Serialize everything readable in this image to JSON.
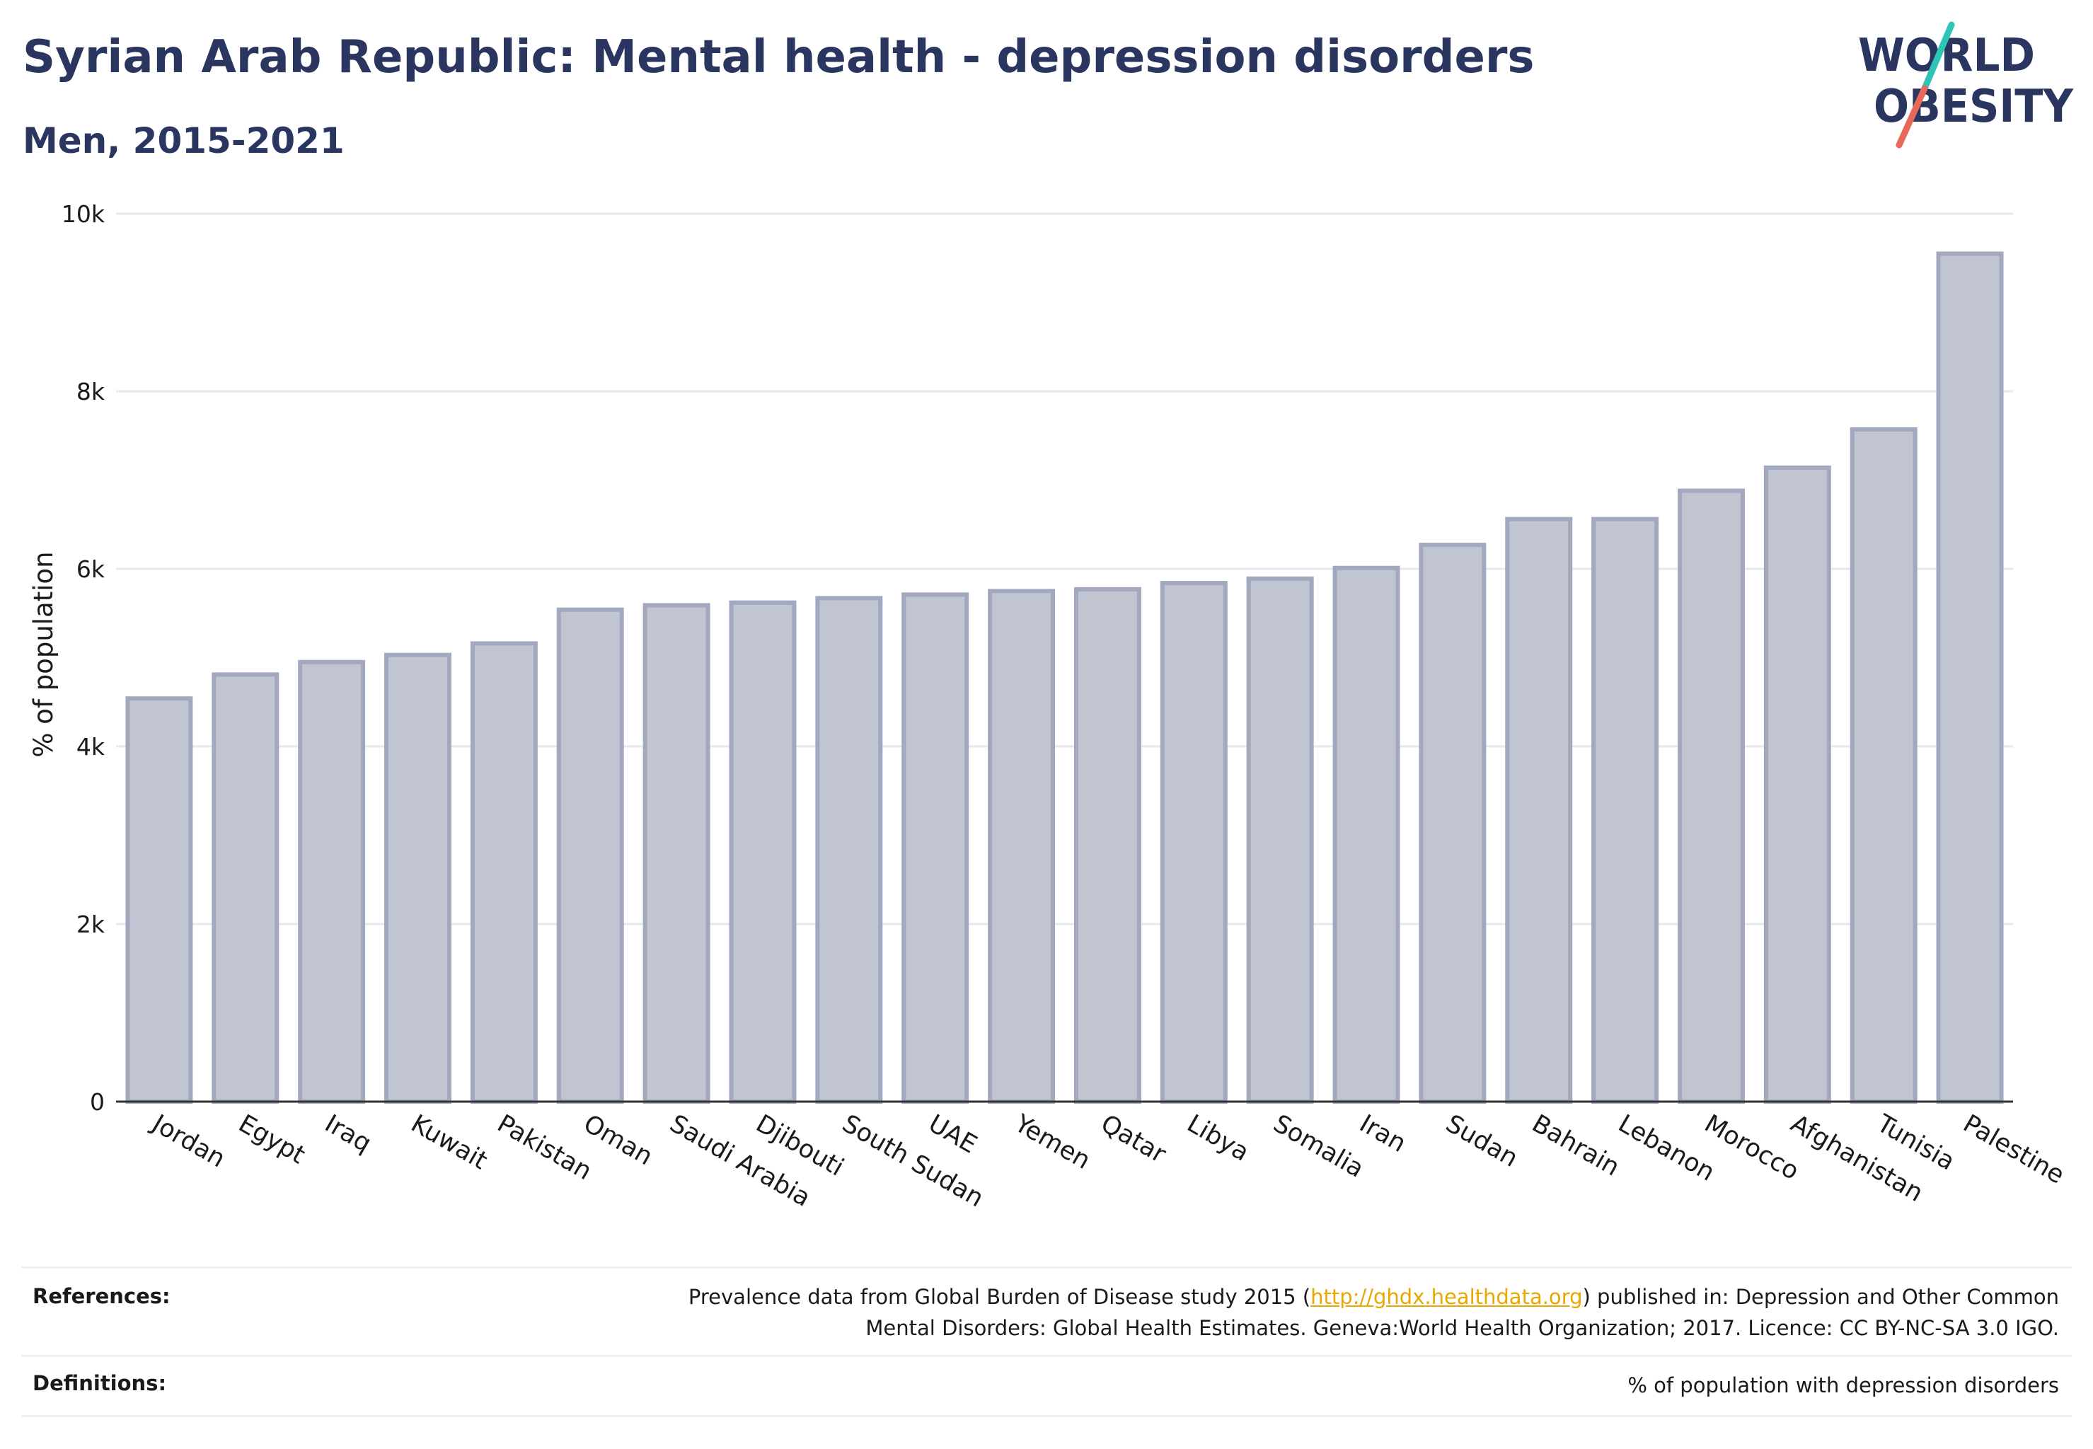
{
  "header": {
    "title": "Syrian Arab Republic: Mental health - depression disorders",
    "subtitle": "Men, 2015-2021"
  },
  "logo": {
    "line1": "WORLD",
    "line2": "OBESITY",
    "colors": {
      "text": "#2a3560",
      "slash_teal": "#2ec4b6",
      "slash_red": "#e8685a"
    }
  },
  "chart_data": {
    "type": "bar",
    "categories": [
      "Jordan",
      "Egypt",
      "Iraq",
      "Kuwait",
      "Pakistan",
      "Oman",
      "Saudi Arabia",
      "Djibouti",
      "South Sudan",
      "UAE",
      "Yemen",
      "Qatar",
      "Libya",
      "Somalia",
      "Iran",
      "Sudan",
      "Bahrain",
      "Lebanon",
      "Morocco",
      "Afghanistan",
      "Tunisia",
      "Palestine"
    ],
    "values": [
      4540,
      4810,
      4950,
      5030,
      5160,
      5540,
      5590,
      5620,
      5670,
      5710,
      5750,
      5770,
      5840,
      5890,
      6010,
      6270,
      6560,
      6560,
      6880,
      7140,
      7570,
      9550
    ],
    "ylabel": "% of population",
    "xlabel": "",
    "ylim": [
      0,
      10000
    ],
    "yticks": [
      0,
      2000,
      4000,
      6000,
      8000,
      10000
    ],
    "ytick_labels": [
      "0",
      "2k",
      "4k",
      "6k",
      "8k",
      "10k"
    ],
    "grid": true,
    "colors": {
      "bar_fill": "#c1c4d1",
      "bar_stroke": "#a2a8bd",
      "grid": "#e6e8ee",
      "axis": "#333333"
    }
  },
  "references": {
    "label": "References:",
    "text_before": "Prevalence data from Global Burden of Disease study 2015 (",
    "link": "http://ghdx.healthdata.org",
    "text_after": ") published in: Depression and Other Common",
    "line2": "Mental Disorders: Global Health Estimates. Geneva:World Health Organization; 2017. Licence: CC BY-NC-SA 3.0 IGO."
  },
  "definitions": {
    "label": "Definitions:",
    "text": "% of population with depression disorders"
  }
}
